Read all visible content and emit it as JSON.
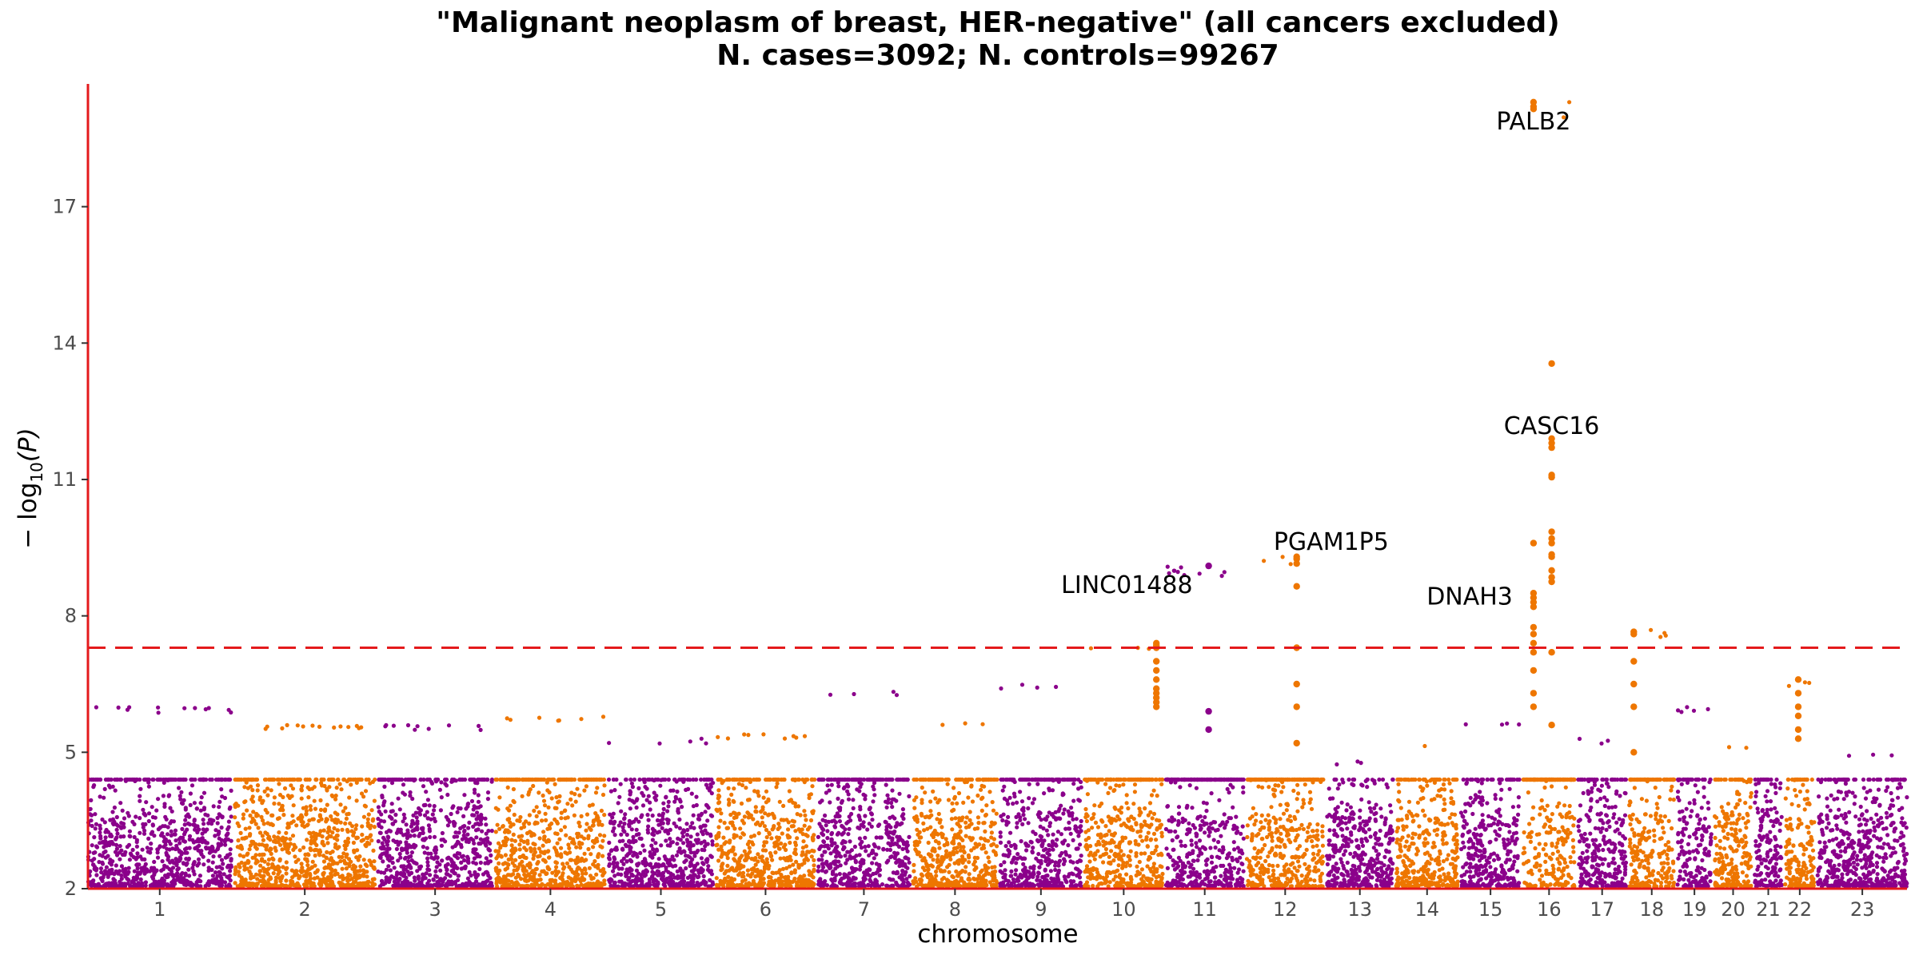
{
  "chart_data": {
    "type": "scatter",
    "title": "\"Malignant neoplasm of breast, HER-negative\" (all cancers excluded)",
    "subtitle": "N. cases=3092; N. controls=99267",
    "xlabel": "chromosome",
    "ylabel_prefix": "− log",
    "ylabel_sub": "10",
    "ylabel_suffix": "(P)",
    "ylim": [
      2,
      19.7
    ],
    "y_ticks": [
      2,
      5,
      8,
      11,
      14,
      17
    ],
    "significance_threshold": 7.3,
    "colors": {
      "odd": "#8b008b",
      "even": "#ee7600",
      "axis": "#e41a1c",
      "threshold": "#e41a1c"
    },
    "chromosomes": [
      {
        "label": "1",
        "length": 249,
        "peak": 6.0
      },
      {
        "label": "2",
        "length": 243,
        "peak": 5.6
      },
      {
        "label": "3",
        "length": 198,
        "peak": 5.6
      },
      {
        "label": "4",
        "length": 191,
        "peak": 5.8
      },
      {
        "label": "5",
        "length": 181,
        "peak": 5.3
      },
      {
        "label": "6",
        "length": 171,
        "peak": 5.4
      },
      {
        "label": "7",
        "length": 159,
        "peak": 6.4
      },
      {
        "label": "8",
        "length": 146,
        "peak": 5.7
      },
      {
        "label": "9",
        "length": 141,
        "peak": 6.5
      },
      {
        "label": "10",
        "length": 135,
        "peak": 7.4
      },
      {
        "label": "11",
        "length": 135,
        "peak": 9.1
      },
      {
        "label": "12",
        "length": 133,
        "peak": 9.3
      },
      {
        "label": "13",
        "length": 115,
        "peak": 4.8
      },
      {
        "label": "14",
        "length": 107,
        "peak": 5.2
      },
      {
        "label": "15",
        "length": 102,
        "peak": 5.7
      },
      {
        "label": "16",
        "length": 90,
        "peak": 19.3
      },
      {
        "label": "17",
        "length": 83,
        "peak": 5.3
      },
      {
        "label": "18",
        "length": 78,
        "peak": 7.7
      },
      {
        "label": "19",
        "length": 59,
        "peak": 6.0
      },
      {
        "label": "20",
        "length": 64,
        "peak": 5.2
      },
      {
        "label": "21",
        "length": 47,
        "peak": 5.4
      },
      {
        "label": "22",
        "length": 51,
        "peak": 6.6
      },
      {
        "label": "23",
        "length": 155,
        "peak": 5.0
      }
    ],
    "peaks": [
      {
        "chrom": "10",
        "pos": 0.92,
        "values": [
          7.4,
          7.35,
          7.3,
          7.0,
          6.8,
          6.6,
          6.4,
          6.3,
          6.2,
          6.1,
          6.0
        ]
      },
      {
        "chrom": "11",
        "pos": 0.55,
        "values": [
          9.1,
          5.9,
          5.5
        ]
      },
      {
        "chrom": "12",
        "pos": 0.65,
        "values": [
          9.3,
          9.25,
          9.15,
          8.65,
          7.3,
          6.5,
          6.0,
          5.2
        ]
      },
      {
        "chrom": "16",
        "pos": 0.2,
        "values": [
          19.3,
          19.2,
          19.15,
          9.6,
          8.5,
          8.4,
          8.3,
          8.2,
          7.75,
          7.6,
          7.4,
          7.2,
          6.8,
          6.3,
          6.0
        ]
      },
      {
        "chrom": "16",
        "pos": 0.55,
        "values": [
          13.55,
          11.9,
          11.8,
          11.7,
          11.1,
          11.05,
          9.85,
          9.7,
          9.6,
          9.35,
          9.3,
          9.0,
          8.85,
          8.75,
          7.2,
          5.6
        ]
      },
      {
        "chrom": "18",
        "pos": 0.1,
        "values": [
          7.65,
          7.6,
          7.0,
          6.5,
          6.0,
          5.0
        ]
      },
      {
        "chrom": "22",
        "pos": 0.45,
        "values": [
          6.6,
          6.3,
          6.0,
          5.8,
          5.5,
          5.3
        ]
      }
    ],
    "annotations": [
      {
        "text": "PALB2",
        "chrom": "16",
        "pos": 0.2,
        "y": 18.7,
        "anchor": "middle"
      },
      {
        "text": "CASC16",
        "chrom": "16",
        "pos": 0.55,
        "y": 12.0,
        "anchor": "middle"
      },
      {
        "text": "PGAM1P5",
        "chrom": "12",
        "pos": 1.1,
        "y": 9.45,
        "anchor": "middle"
      },
      {
        "text": "LINC01488",
        "chrom": "11",
        "pos": -0.5,
        "y": 8.5,
        "anchor": "middle"
      },
      {
        "text": "DNAH3",
        "chrom": "16",
        "pos": -0.2,
        "y": 8.25,
        "anchor": "end"
      }
    ]
  }
}
